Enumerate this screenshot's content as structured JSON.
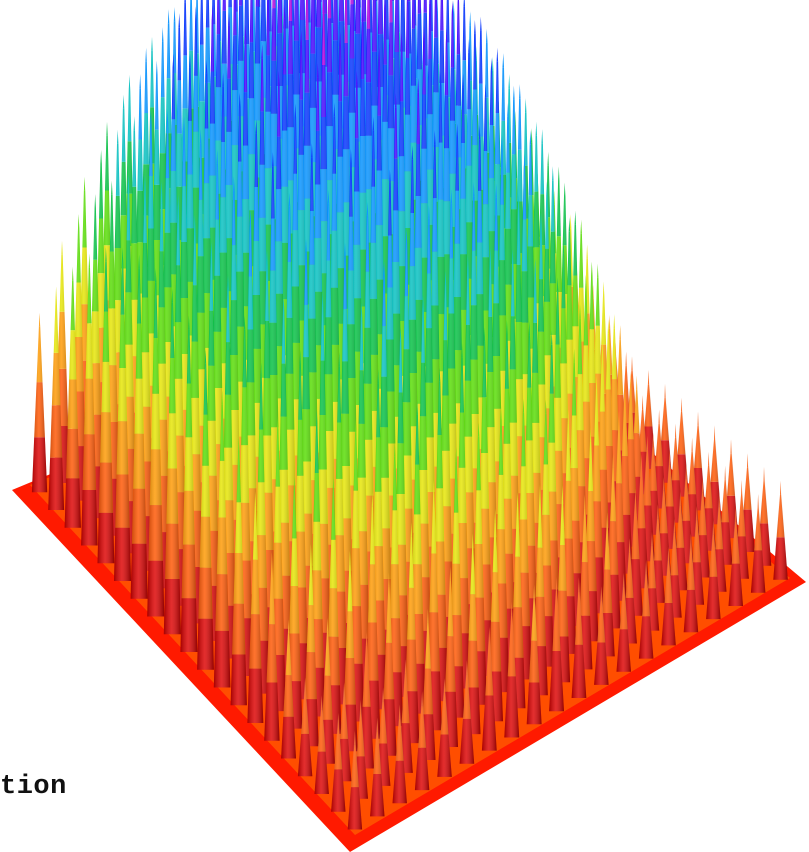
{
  "caption": "tion",
  "surface": {
    "kind": "3d-spike-surface",
    "grid_size": 20,
    "colors": [
      "#dd0000",
      "#ff5500",
      "#ff9900",
      "#e6e600",
      "#55dd00",
      "#00c040",
      "#00c0c0",
      "#0090ff",
      "#0030ff",
      "#4000ff",
      "#b000e0"
    ],
    "base_color": "#ff0000"
  }
}
